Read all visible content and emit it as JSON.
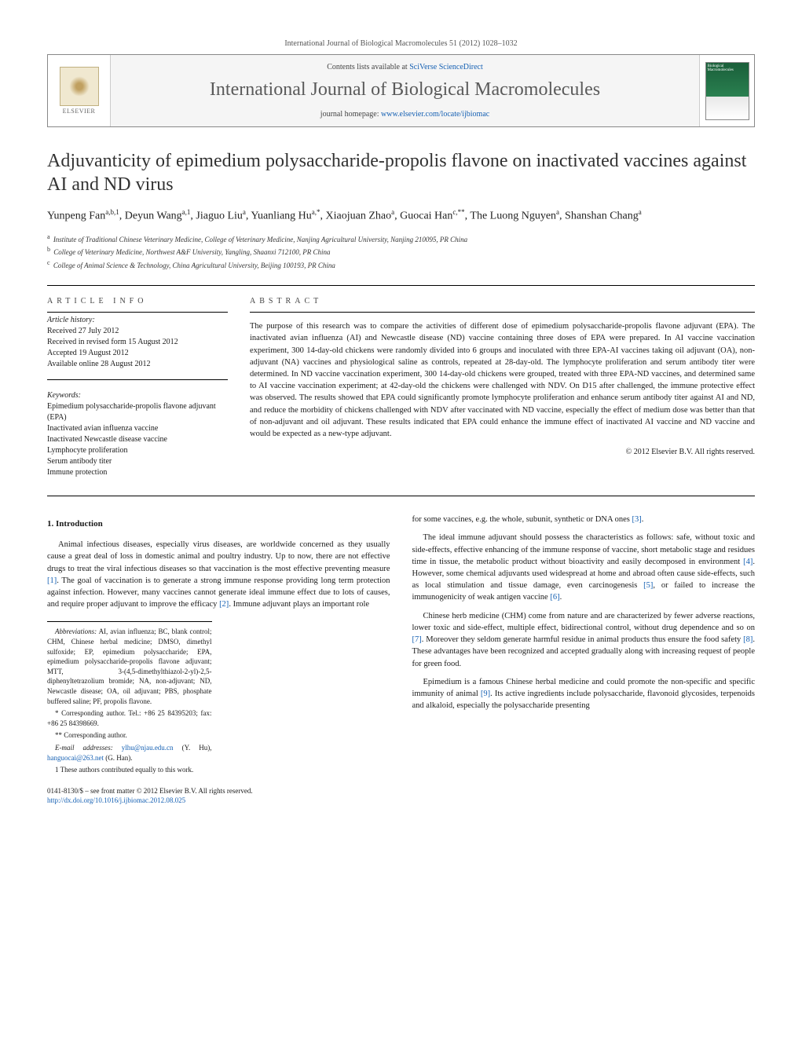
{
  "header": {
    "citation": "International Journal of Biological Macromolecules 51 (2012) 1028–1032",
    "publisher": "ELSEVIER",
    "contents_prefix": "Contents lists available at ",
    "contents_link": "SciVerse ScienceDirect",
    "journal": "International Journal of Biological Macromolecules",
    "homepage_prefix": "journal homepage: ",
    "homepage_url": "www.elsevier.com/locate/ijbiomac",
    "cover_text": "Biological Macromolecules"
  },
  "title": "Adjuvanticity of epimedium polysaccharide-propolis flavone on inactivated vaccines against AI and ND virus",
  "authors_html": "Yunpeng Fan<sup>a,b,1</sup>, Deyun Wang<sup>a,1</sup>, Jiaguo Liu<sup>a</sup>, Yuanliang Hu<sup>a,*</sup>, Xiaojuan Zhao<sup>a</sup>, Guocai Han<sup>c,**</sup>, The Luong Nguyen<sup>a</sup>, Shanshan Chang<sup>a</sup>",
  "affiliations": [
    {
      "sup": "a",
      "text": "Institute of Traditional Chinese Veterinary Medicine, College of Veterinary Medicine, Nanjing Agricultural University, Nanjing 210095, PR China"
    },
    {
      "sup": "b",
      "text": "College of Veterinary Medicine, Northwest A&F University, Yangling, Shaanxi 712100, PR China"
    },
    {
      "sup": "c",
      "text": "College of Animal Science & Technology, China Agricultural University, Beijing 100193, PR China"
    }
  ],
  "info": {
    "label": "article info",
    "history_label": "Article history:",
    "history": [
      "Received 27 July 2012",
      "Received in revised form 15 August 2012",
      "Accepted 19 August 2012",
      "Available online 28 August 2012"
    ],
    "kw_label": "Keywords:",
    "keywords": [
      "Epimedium polysaccharide-propolis flavone adjuvant (EPA)",
      "Inactivated avian influenza vaccine",
      "Inactivated Newcastle disease vaccine",
      "Lymphocyte proliferation",
      "Serum antibody titer",
      "Immune protection"
    ]
  },
  "abstract": {
    "label": "abstract",
    "text": "The purpose of this research was to compare the activities of different dose of epimedium polysaccharide-propolis flavone adjuvant (EPA). The inactivated avian influenza (AI) and Newcastle disease (ND) vaccine containing three doses of EPA were prepared. In AI vaccine vaccination experiment, 300 14-day-old chickens were randomly divided into 6 groups and inoculated with three EPA-AI vaccines taking oil adjuvant (OA), non-adjuvant (NA) vaccines and physiological saline as controls, repeated at 28-day-old. The lymphocyte proliferation and serum antibody titer were determined. In ND vaccine vaccination experiment, 300 14-day-old chickens were grouped, treated with three EPA-ND vaccines, and determined same to AI vaccine vaccination experiment; at 42-day-old the chickens were challenged with NDV. On D15 after challenged, the immune protective effect was observed. The results showed that EPA could significantly promote lymphocyte proliferation and enhance serum antibody titer against AI and ND, and reduce the morbidity of chickens challenged with NDV after vaccinated with ND vaccine, especially the effect of medium dose was better than that of non-adjuvant and oil adjuvant. These results indicated that EPA could enhance the immune effect of inactivated AI vaccine and ND vaccine and would be expected as a new-type adjuvant.",
    "copyright": "© 2012 Elsevier B.V. All rights reserved."
  },
  "body": {
    "h1": "1. Introduction",
    "p1": "Animal infectious diseases, especially virus diseases, are worldwide concerned as they usually cause a great deal of loss in domestic animal and poultry industry. Up to now, there are not effective drugs to treat the viral infectious diseases so that vaccination is the most effective preventing measure [1]. The goal of vaccination is to generate a strong immune response providing long term protection against infection. However, many vaccines cannot generate ideal immune effect due to lots of causes, and require proper adjuvant to improve the efficacy [2]. Immune adjuvant plays an important role",
    "p2": "for some vaccines, e.g. the whole, subunit, synthetic or DNA ones [3].",
    "p3": "The ideal immune adjuvant should possess the characteristics as follows: safe, without toxic and side-effects, effective enhancing of the immune response of vaccine, short metabolic stage and residues time in tissue, the metabolic product without bioactivity and easily decomposed in environment [4]. However, some chemical adjuvants used widespread at home and abroad often cause side-effects, such as local stimulation and tissue damage, even carcinogenesis [5], or failed to increase the immunogenicity of weak antigen vaccine [6].",
    "p4": "Chinese herb medicine (CHM) come from nature and are characterized by fewer adverse reactions, lower toxic and side-effect, multiple effect, bidirectional control, without drug dependence and so on [7]. Moreover they seldom generate harmful residue in animal products thus ensure the food safety [8]. These advantages have been recognized and accepted gradually along with increasing request of people for green food.",
    "p5": "Epimedium is a famous Chinese herbal medicine and could promote the non-specific and specific immunity of animal [9]. Its active ingredients include polysaccharide, flavonoid glycosides, terpenoids and alkaloid, especially the polysaccharide presenting"
  },
  "footnotes": {
    "abbrev_label": "Abbreviations:",
    "abbrev": "AI, avian influenza; BC, blank control; CHM, Chinese herbal medicine; DMSO, dimethyl sulfoxide; EP, epimedium polysaccharide; EPA, epimedium polysaccharide-propolis flavone adjuvant; MTT, 3-(4,5-dimethylthiazol-2-yl)-2,5-diphenyltetrazolium bromide; NA, non-adjuvant; ND, Newcastle disease; OA, oil adjuvant; PBS, phosphate buffered saline; PF, propolis flavone.",
    "corr1": "* Corresponding author. Tel.: +86 25 84395203; fax: +86 25 84398669.",
    "corr2": "** Corresponding author.",
    "email_label": "E-mail addresses:",
    "email1": "ylhu@njau.edu.cn",
    "email1_who": "(Y. Hu),",
    "email2": "hanguocai@263.net",
    "email2_who": "(G. Han).",
    "equal": "1 These authors contributed equally to this work."
  },
  "bottom": {
    "line1": "0141-8130/$ – see front matter © 2012 Elsevier B.V. All rights reserved.",
    "doi": "http://dx.doi.org/10.1016/j.ijbiomac.2012.08.025"
  }
}
